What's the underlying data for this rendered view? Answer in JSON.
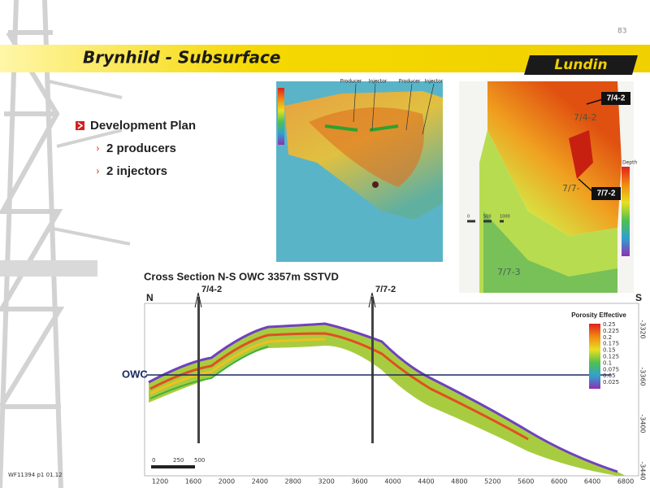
{
  "page_number": "83",
  "header": {
    "title": "Brynhild - Subsurface",
    "logo": "Lundin"
  },
  "bullets": {
    "main": "Development Plan",
    "items": [
      "2 producers",
      "2 injectors"
    ]
  },
  "left_map": {
    "labels": [
      "Producer",
      "Injector",
      "Producer",
      "Injector"
    ]
  },
  "right_map": {
    "wells": [
      "7/4-2",
      "7/7-2"
    ],
    "map_labels": [
      "7/4-2",
      "7/7-",
      "7/7-3"
    ],
    "legend_title": "Depth",
    "scale": [
      "0",
      "500",
      "1000"
    ]
  },
  "cross_section": {
    "title": "Cross Section N-S OWC 3357m SSTVD",
    "north": "N",
    "south": "S",
    "wells": [
      "7/4-2",
      "7/7-2"
    ],
    "owc": "OWC",
    "legend_title": "Porosity Effective",
    "legend_values": [
      "0.25",
      "0.225",
      "0.2",
      "0.175",
      "0.15",
      "0.125",
      "0.1",
      "0.075",
      "0.05",
      "0.025"
    ],
    "x_labels": [
      "1200",
      "1600",
      "2000",
      "2400",
      "2800",
      "3200",
      "3600",
      "4000",
      "4400",
      "4800",
      "5200",
      "5600",
      "6000",
      "6400",
      "6800"
    ],
    "depth_labels": [
      "-3320",
      "-3360",
      "-3400",
      "-3440"
    ],
    "scale": [
      "0",
      "250",
      "500"
    ]
  },
  "footer": "WF11394 p1 01.12"
}
